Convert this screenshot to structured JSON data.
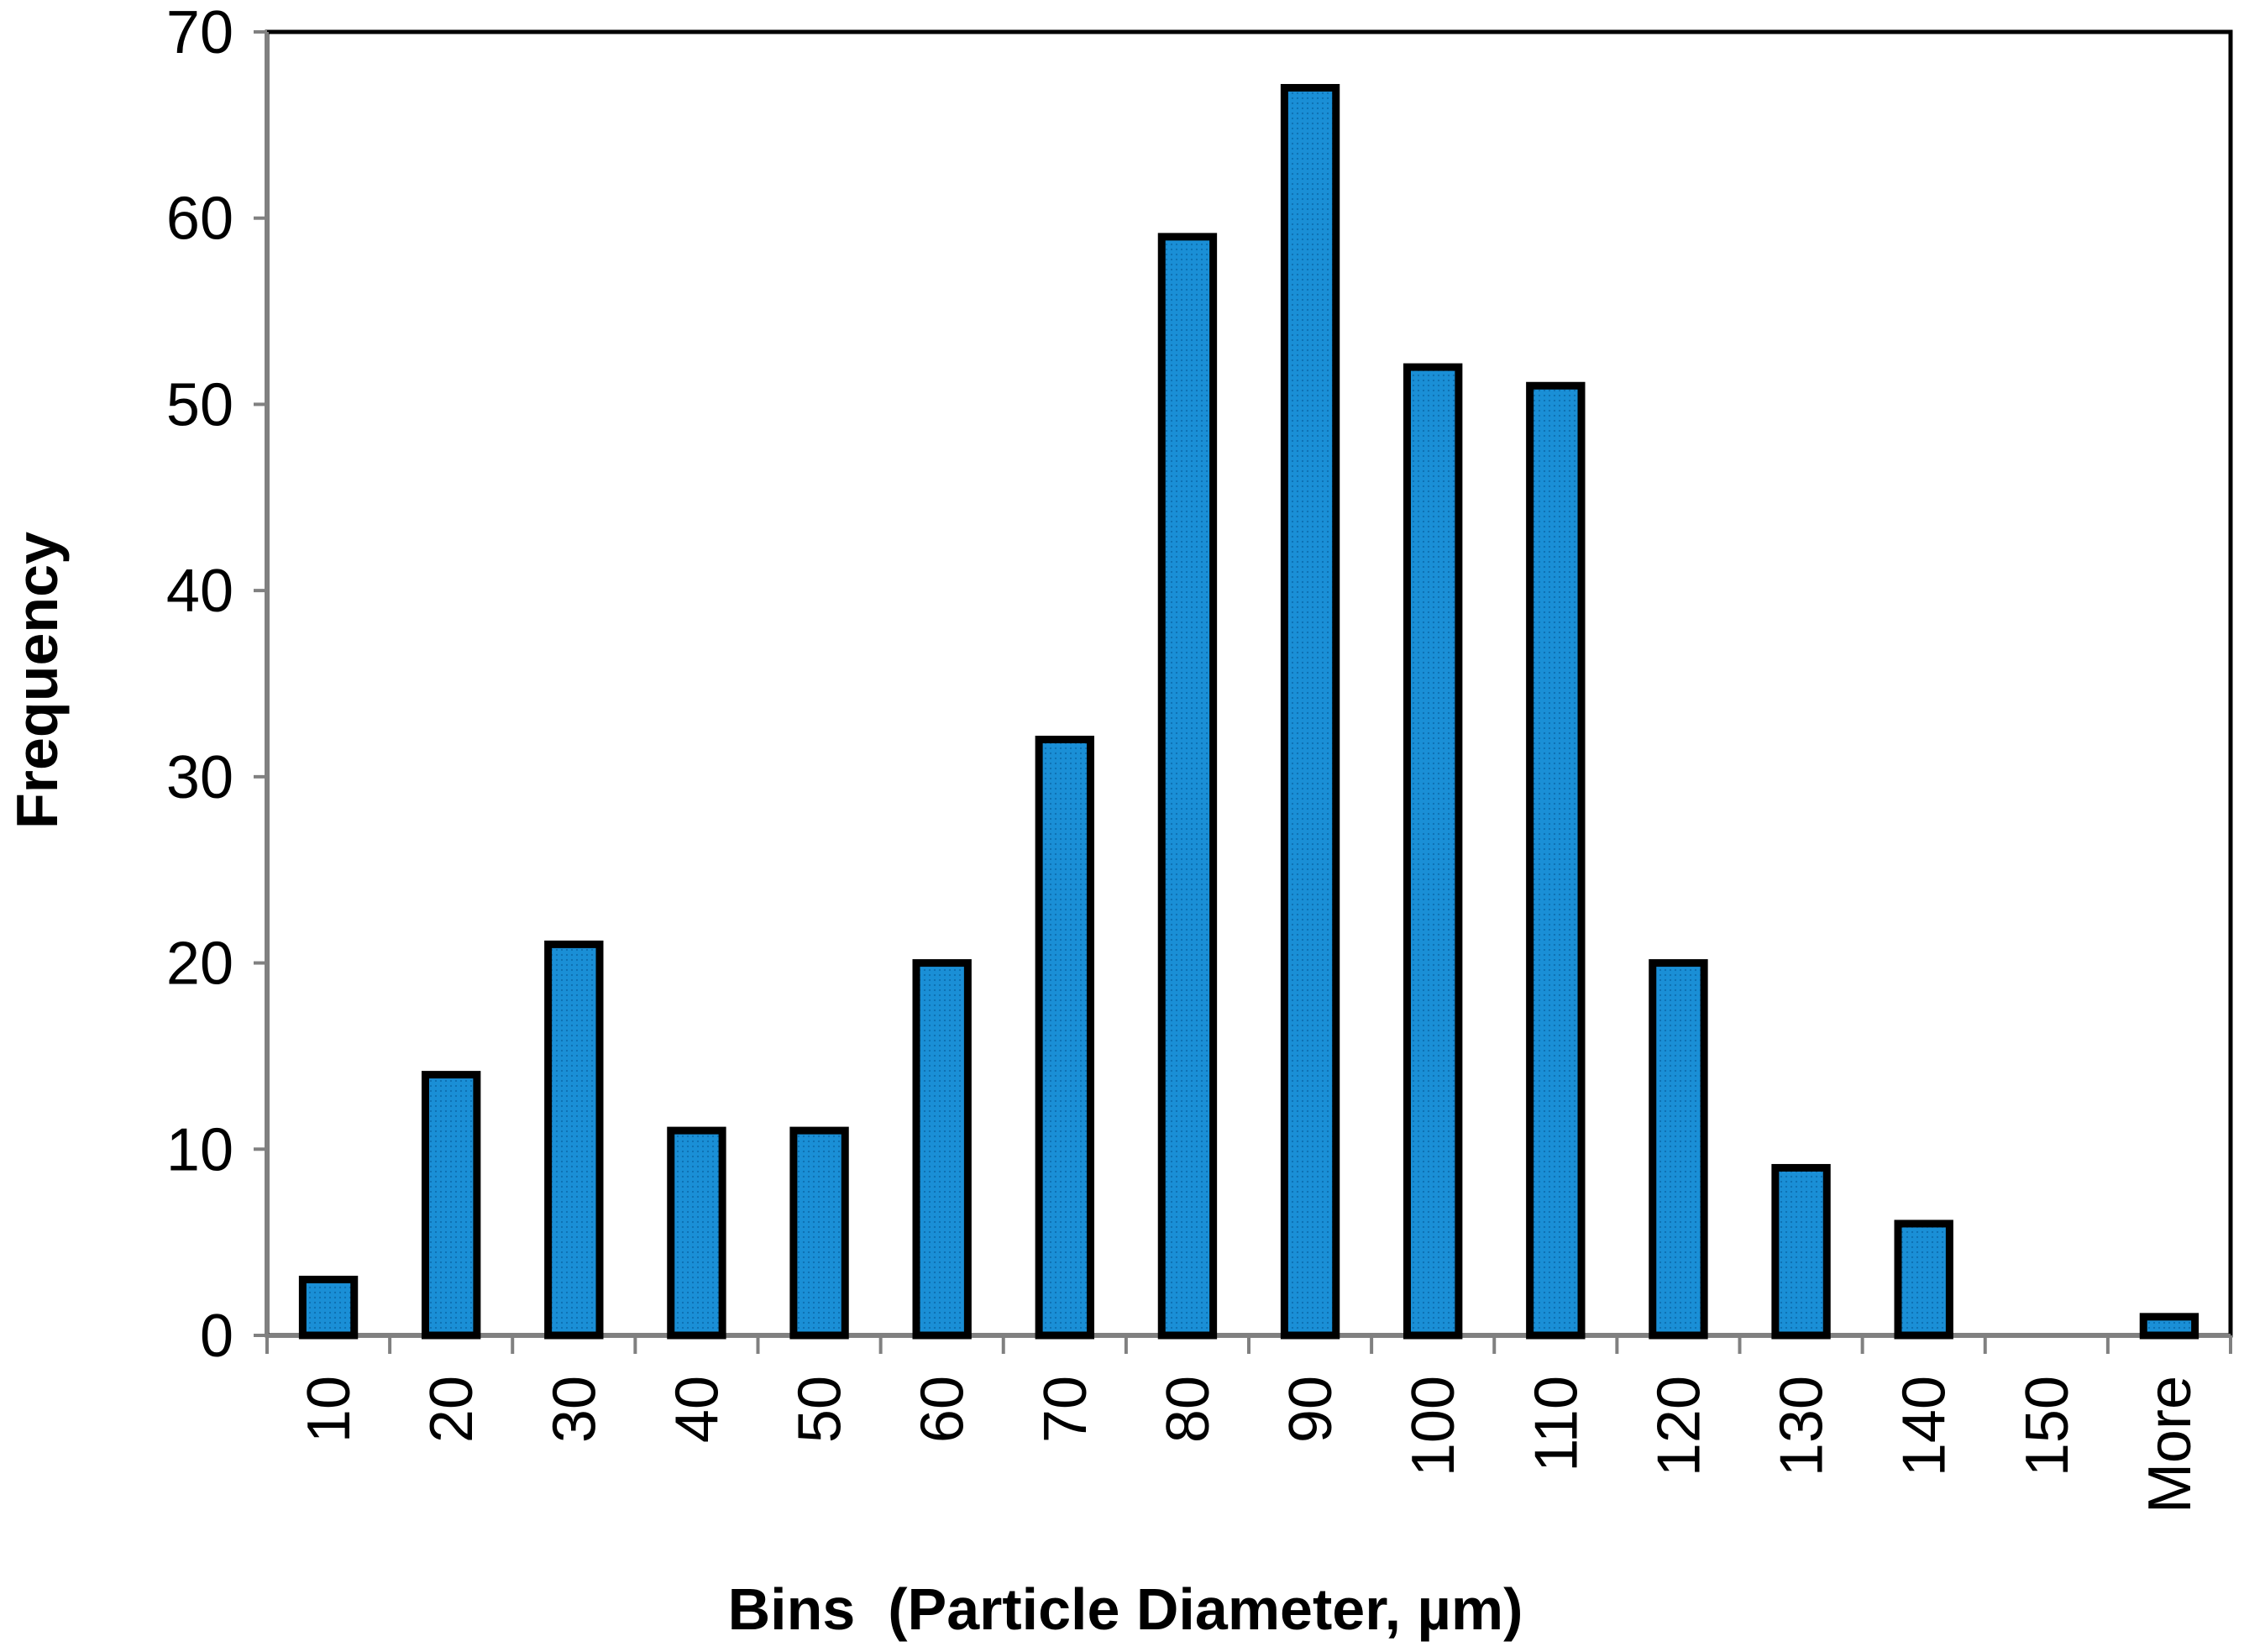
{
  "chart_data": {
    "type": "bar",
    "title": "",
    "xlabel": "Bins  (Particle Diameter, µm)",
    "ylabel": "Frequency",
    "categories": [
      "10",
      "20",
      "30",
      "40",
      "50",
      "60",
      "70",
      "80",
      "90",
      "100",
      "110",
      "120",
      "130",
      "140",
      "150",
      "More"
    ],
    "values": [
      3,
      14,
      21,
      11,
      11,
      20,
      32,
      59,
      67,
      52,
      51,
      20,
      9,
      6,
      0,
      1
    ],
    "ylim": [
      0,
      70
    ],
    "yticks": [
      "0",
      "10",
      "20",
      "30",
      "40",
      "50",
      "60",
      "70"
    ],
    "grid": false,
    "legend": "none",
    "bar_color": "#1a8fd6",
    "bar_border_color": "#000000"
  }
}
